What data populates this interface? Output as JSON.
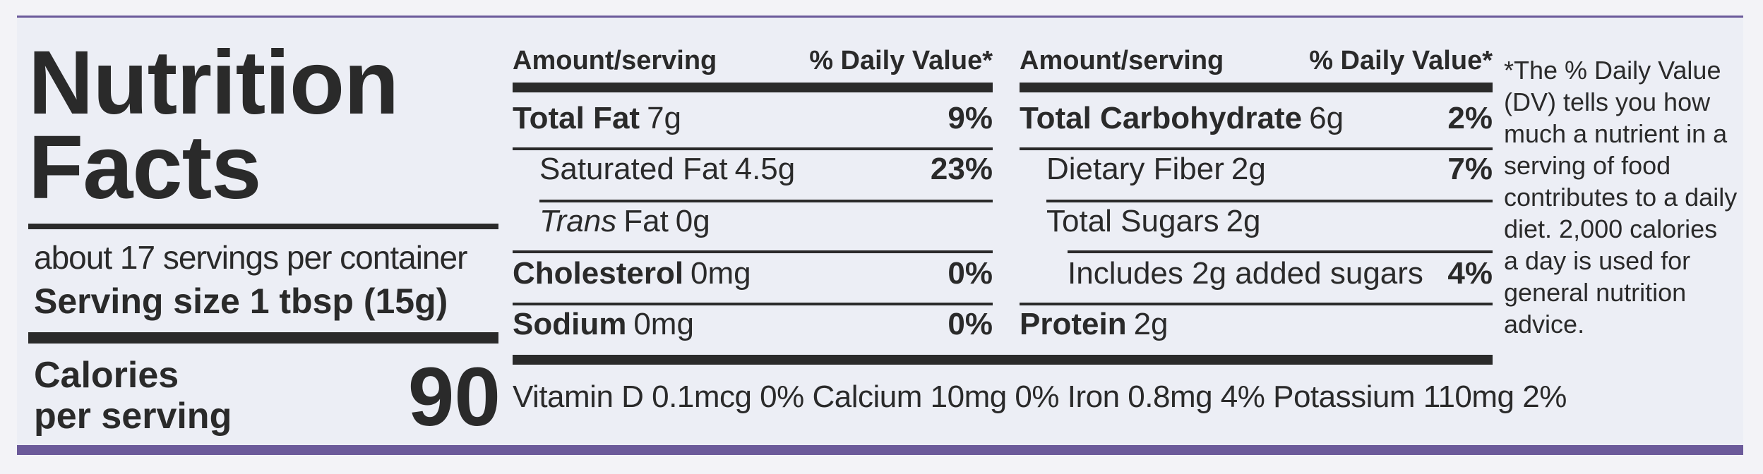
{
  "title": {
    "line1": "Nutrition",
    "line2": "Facts"
  },
  "servings_per_container": "about 17 servings per container",
  "serving_size": {
    "label": "Serving size",
    "value": "1 tbsp (15g)"
  },
  "calories": {
    "line1": "Calories",
    "line2": "per serving",
    "value": "90"
  },
  "col1": {
    "header_left": "Amount/serving",
    "header_right": "% Daily Value*",
    "rows": [
      {
        "name": "Total Fat",
        "amount": "7g",
        "dv": "9%"
      },
      {
        "name": "Saturated Fat",
        "amount": "4.5g",
        "dv": "23%"
      },
      {
        "name_italic": "Trans",
        "name": "Fat",
        "amount": "0g",
        "dv": ""
      },
      {
        "name": "Cholesterol",
        "amount": "0mg",
        "dv": "0%"
      },
      {
        "name": "Sodium",
        "amount": "0mg",
        "dv": "0%"
      }
    ]
  },
  "col2": {
    "header_left": "Amount/serving",
    "header_right": "% Daily Value*",
    "rows": [
      {
        "name": "Total Carbohydrate",
        "amount": "6g",
        "dv": "2%"
      },
      {
        "name": "Dietary Fiber",
        "amount": "2g",
        "dv": "7%"
      },
      {
        "name": "Total Sugars",
        "amount": "2g",
        "dv": ""
      },
      {
        "name": "Includes 2g added sugars",
        "amount": "",
        "dv": "4%"
      },
      {
        "name": "Protein",
        "amount": "2g",
        "dv": ""
      }
    ]
  },
  "micronutrients": "Vitamin D 0.1mcg 0% Calcium 10mg 0% Iron 0.8mg 4% Potassium 110mg 2%",
  "footnote": [
    "*The % Daily Value",
    "(DV) tells you how",
    "much a nutrient in a",
    "serving of food",
    "contributes to a daily",
    "diet. 2,000 calories",
    "a day is used for",
    "general nutrition",
    "advice."
  ]
}
